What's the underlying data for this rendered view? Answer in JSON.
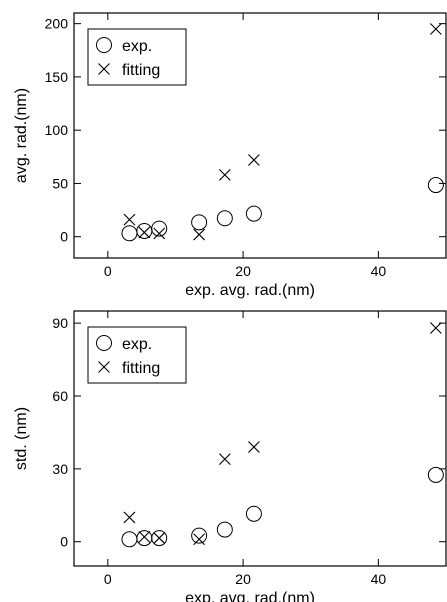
{
  "chart_data": [
    {
      "type": "scatter",
      "xlabel": "exp. avg. rad.(nm)",
      "ylabel": "avg. rad.(nm)",
      "xlim": [
        -5,
        50
      ],
      "ylim": [
        -20,
        210
      ],
      "xticks": [
        0,
        20,
        40
      ],
      "yticks": [
        0,
        50,
        100,
        150,
        200
      ],
      "grid": false,
      "legend": "top-left",
      "series": [
        {
          "name": "exp.",
          "marker": "circle",
          "x": [
            3.2,
            5.4,
            7.6,
            13.5,
            17.3,
            21.6,
            48.5
          ],
          "y": [
            3.2,
            5.4,
            7.6,
            13.5,
            17.3,
            21.6,
            48.5
          ]
        },
        {
          "name": "fitting",
          "marker": "x",
          "x": [
            3.2,
            5.4,
            7.6,
            13.5,
            17.3,
            21.6,
            48.5
          ],
          "y": [
            16,
            4,
            3,
            2,
            58,
            72,
            195
          ]
        }
      ]
    },
    {
      "type": "scatter",
      "xlabel": "exp. avg. rad.(nm)",
      "ylabel": "std. (nm)",
      "xlim": [
        -5,
        50
      ],
      "ylim": [
        -10,
        95
      ],
      "xticks": [
        0,
        20,
        40
      ],
      "yticks": [
        0,
        30,
        60,
        90
      ],
      "grid": false,
      "legend": "top-left",
      "series": [
        {
          "name": "exp.",
          "marker": "circle",
          "x": [
            3.2,
            5.4,
            7.6,
            13.5,
            17.3,
            21.6,
            48.5
          ],
          "y": [
            1,
            1.5,
            1.5,
            2.5,
            5,
            11.5,
            27.5
          ]
        },
        {
          "name": "fitting",
          "marker": "x",
          "x": [
            3.2,
            5.4,
            7.6,
            13.5,
            17.3,
            21.6,
            48.5
          ],
          "y": [
            10,
            2,
            1.5,
            1,
            34,
            39,
            88
          ]
        }
      ]
    }
  ]
}
